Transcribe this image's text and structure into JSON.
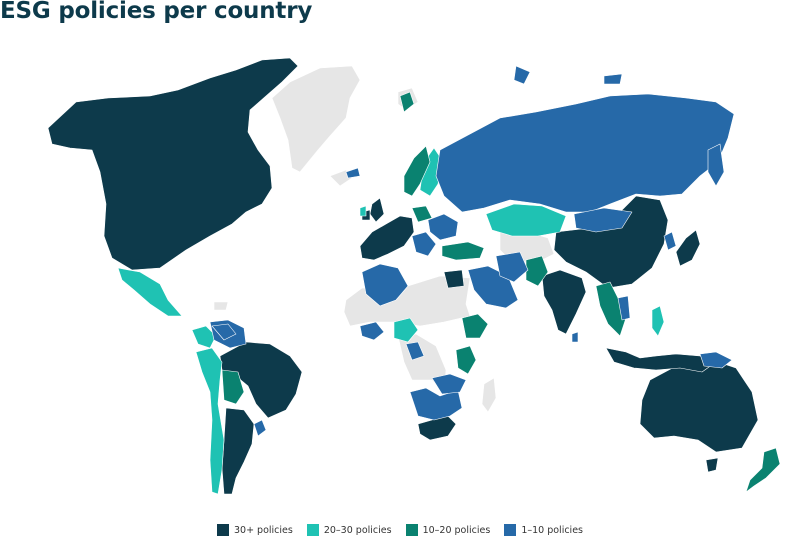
{
  "title": "ESG policies per country",
  "colors": {
    "tier_30_plus": "#0d3a4b",
    "tier_20_30": "#1fc2b3",
    "tier_10_20": "#0a8270",
    "tier_1_10": "#2669a8",
    "no_data": "#e6e6e6"
  },
  "legend": [
    {
      "label": "30+ policies",
      "color": "#0d3a4b"
    },
    {
      "label": "20–30 policies",
      "color": "#1fc2b3"
    },
    {
      "label": "10–20 policies",
      "color": "#0a8270"
    },
    {
      "label": "1–10 policies",
      "color": "#2669a8"
    }
  ]
}
